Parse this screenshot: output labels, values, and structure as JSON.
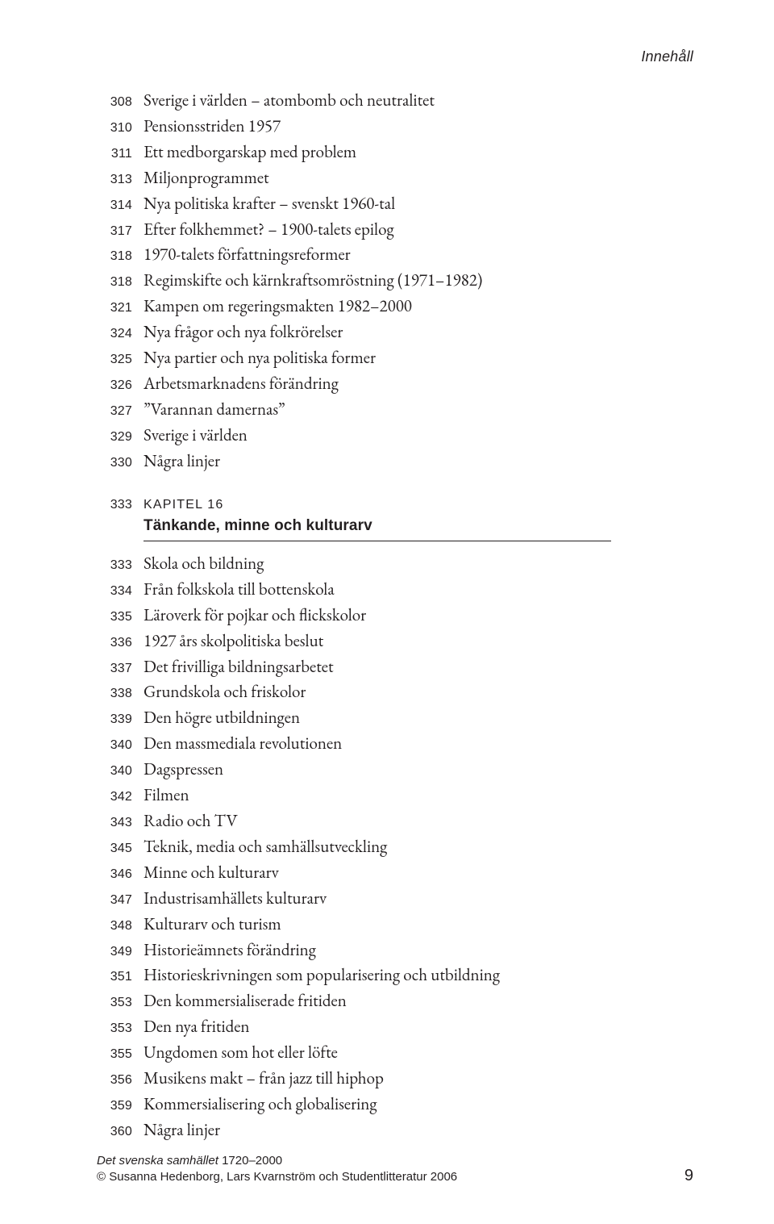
{
  "running_head": "Innehåll",
  "section1": [
    {
      "pg": "308",
      "title": "Sverige i världen – atombomb och neutralitet"
    },
    {
      "pg": "310",
      "title": "Pensionsstriden 1957"
    },
    {
      "pg": "311",
      "title": "Ett medborgarskap med problem"
    },
    {
      "pg": "313",
      "title": "Miljonprogrammet"
    },
    {
      "pg": "314",
      "title": "Nya politiska krafter – svenskt 1960-tal"
    },
    {
      "pg": "317",
      "title": "Efter folkhemmet? – 1900-talets epilog"
    },
    {
      "pg": "318",
      "title": "1970-talets författningsreformer"
    },
    {
      "pg": "318",
      "title": "Regimskifte och kärnkraftsomröstning (1971–1982)"
    },
    {
      "pg": "321",
      "title": "Kampen om regeringsmakten 1982–2000"
    },
    {
      "pg": "324",
      "title": "Nya frågor och nya folkrörelser"
    },
    {
      "pg": "325",
      "title": "Nya partier och nya politiska former"
    },
    {
      "pg": "326",
      "title": "Arbetsmarknadens förändring"
    },
    {
      "pg": "327",
      "title": "”Varannan damernas”"
    },
    {
      "pg": "329",
      "title": "Sverige i världen"
    },
    {
      "pg": "330",
      "title": "Några linjer"
    }
  ],
  "chapter": {
    "pg": "333",
    "label": "KAPITEL 16",
    "title": "Tänkande, minne och kulturarv"
  },
  "section2": [
    {
      "pg": "333",
      "title": "Skola och bildning"
    },
    {
      "pg": "334",
      "title": "Från folkskola till bottenskola"
    },
    {
      "pg": "335",
      "title": "Läroverk för pojkar och flickskolor"
    },
    {
      "pg": "336",
      "title": "1927 års skolpolitiska beslut"
    },
    {
      "pg": "337",
      "title": "Det frivilliga bildningsarbetet"
    },
    {
      "pg": "338",
      "title": "Grundskola och friskolor"
    },
    {
      "pg": "339",
      "title": "Den högre utbildningen"
    },
    {
      "pg": "340",
      "title": "Den massmediala revolutionen"
    },
    {
      "pg": "340",
      "title": "Dagspressen"
    },
    {
      "pg": "342",
      "title": "Filmen"
    },
    {
      "pg": "343",
      "title": "Radio och TV"
    },
    {
      "pg": "345",
      "title": "Teknik, media och samhällsutveckling"
    },
    {
      "pg": "346",
      "title": "Minne och kulturarv"
    },
    {
      "pg": "347",
      "title": "Industrisamhällets kulturarv"
    },
    {
      "pg": "348",
      "title": "Kulturarv och turism"
    },
    {
      "pg": "349",
      "title": "Historieämnets förändring"
    },
    {
      "pg": "351",
      "title": "Historieskrivningen som popularisering och utbildning"
    },
    {
      "pg": "353",
      "title": "Den kommersialiserade fritiden"
    },
    {
      "pg": "353",
      "title": "Den nya fritiden"
    },
    {
      "pg": "355",
      "title": "Ungdomen som hot eller löfte"
    },
    {
      "pg": "356",
      "title": "Musikens makt – från jazz till hiphop"
    },
    {
      "pg": "359",
      "title": "Kommersialisering och globalisering"
    },
    {
      "pg": "360",
      "title": "Några linjer"
    }
  ],
  "footer": {
    "book_title": "Det svenska samhället",
    "book_years": " 1720–2000",
    "copyright": "© Susanna Hedenborg, Lars Kvarnström och Studentlitteratur 2006",
    "page_number": "9"
  }
}
